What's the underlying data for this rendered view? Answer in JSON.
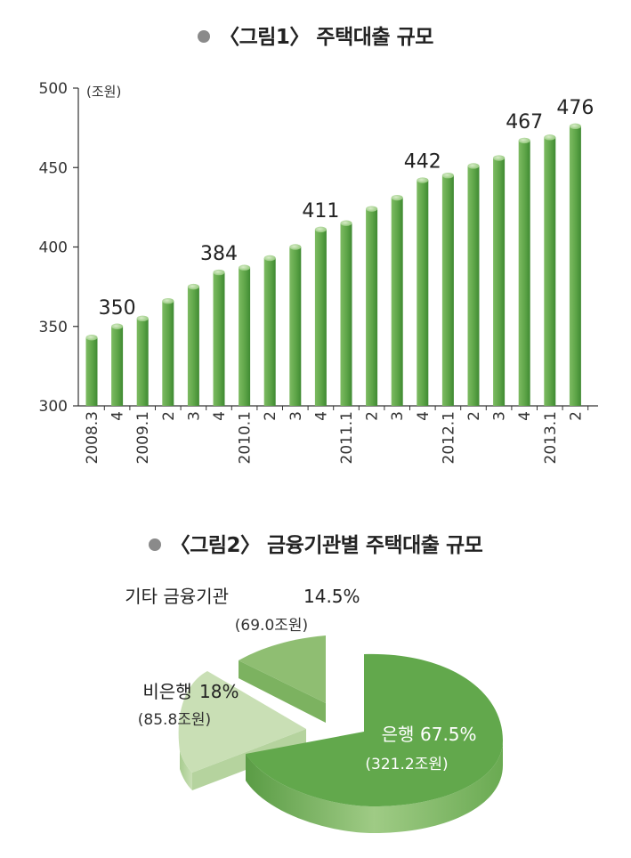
{
  "chart_data": [
    {
      "type": "bar",
      "title": "〈그림1〉 주택대출 규모",
      "unit_label": "(조원)",
      "ylim": [
        300,
        500
      ],
      "yticks": [
        300,
        350,
        400,
        450,
        500
      ],
      "grid": false,
      "categories": [
        "2008.3",
        "4",
        "2009.1",
        "2",
        "3",
        "4",
        "2010.1",
        "2",
        "3",
        "4",
        "2011.1",
        "2",
        "3",
        "4",
        "2012.1",
        "2",
        "3",
        "4",
        "2013.1",
        "2"
      ],
      "values": [
        343,
        350,
        355,
        366,
        375,
        384,
        387,
        393,
        400,
        411,
        415,
        424,
        431,
        442,
        445,
        451,
        456,
        467,
        469,
        476
      ],
      "data_labels": [
        {
          "index": 1,
          "text": "350"
        },
        {
          "index": 5,
          "text": "384"
        },
        {
          "index": 9,
          "text": "411"
        },
        {
          "index": 13,
          "text": "442"
        },
        {
          "index": 17,
          "text": "467"
        },
        {
          "index": 19,
          "text": "476"
        }
      ],
      "color": "#62a84c"
    },
    {
      "type": "pie",
      "title": "〈그림2〉 금융기관별 주택대출 규모",
      "slices": [
        {
          "label": "은행",
          "percent": 67.5,
          "amount": 321.2,
          "pct_text": "67.5%",
          "amount_text": "(321.2조원)",
          "color": "#62a84c"
        },
        {
          "label": "비은행",
          "percent": 18,
          "amount": 85.8,
          "pct_text": "18%",
          "amount_text": "(85.8조원)",
          "color": "#c9dfb5"
        },
        {
          "label": "기타 금융기관",
          "percent": 14.5,
          "amount": 69.0,
          "pct_text": "14.5%",
          "amount_text": "(69.0조원)",
          "color": "#8fbe72"
        }
      ]
    }
  ]
}
